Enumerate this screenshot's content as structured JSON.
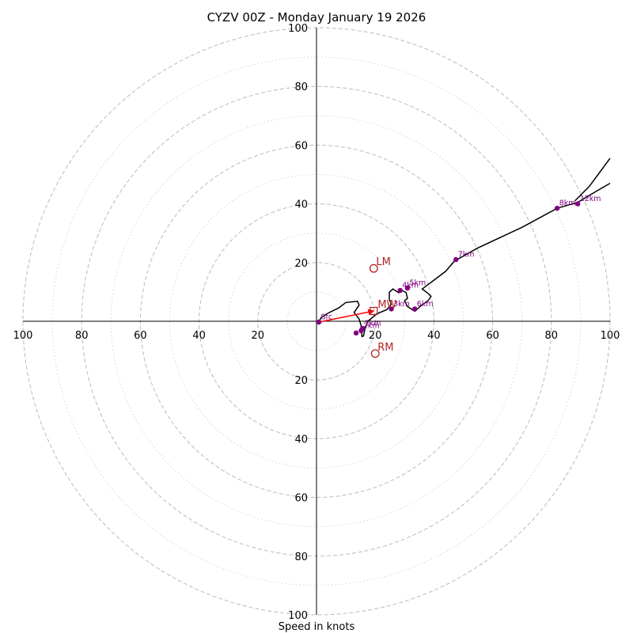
{
  "chart_data": {
    "type": "hodograph",
    "title": "CYZV 00Z - Monday January 19 2026",
    "xlabel": "Speed in knots",
    "range": [
      -100,
      100
    ],
    "ticks": {
      "x_labels": [
        "100",
        "80",
        "60",
        "40",
        "20",
        "20",
        "40",
        "60",
        "80",
        "100"
      ],
      "y_labels": [
        "100",
        "80",
        "60",
        "40",
        "20",
        "20",
        "40",
        "60",
        "80",
        "100"
      ]
    },
    "rings": {
      "major": [
        20,
        40,
        60,
        80,
        100
      ],
      "minor": [
        10,
        30,
        50,
        70,
        90
      ]
    },
    "trace": [
      {
        "u": 0.8,
        "v": -0.3
      },
      {
        "u": 1.5,
        "v": 1.2
      },
      {
        "u": 4.0,
        "v": 2.8
      },
      {
        "u": 7.5,
        "v": 4.5
      },
      {
        "u": 10.0,
        "v": 6.4
      },
      {
        "u": 14.0,
        "v": 6.8
      },
      {
        "u": 14.5,
        "v": 5.5
      },
      {
        "u": 12.8,
        "v": 3.0
      },
      {
        "u": 14.5,
        "v": 0.8
      },
      {
        "u": 15.2,
        "v": -1.5
      },
      {
        "u": 15.5,
        "v": -5.2
      },
      {
        "u": 16.0,
        "v": -5.0
      },
      {
        "u": 16.5,
        "v": -2.5
      },
      {
        "u": 17.5,
        "v": 0.0
      },
      {
        "u": 20.5,
        "v": 2.5
      },
      {
        "u": 24.0,
        "v": 4.0
      },
      {
        "u": 25.5,
        "v": 5.8
      },
      {
        "u": 24.8,
        "v": 7.5
      },
      {
        "u": 24.8,
        "v": 9.8
      },
      {
        "u": 26.0,
        "v": 11.0
      },
      {
        "u": 28.0,
        "v": 9.7
      },
      {
        "u": 29.0,
        "v": 10.5
      },
      {
        "u": 30.5,
        "v": 9.8
      },
      {
        "u": 31.0,
        "v": 7.8
      },
      {
        "u": 30.0,
        "v": 7.0
      },
      {
        "u": 31.0,
        "v": 5.0
      },
      {
        "u": 33.5,
        "v": 3.4
      },
      {
        "u": 35.5,
        "v": 5.2
      },
      {
        "u": 38.0,
        "v": 7.0
      },
      {
        "u": 39.0,
        "v": 8.4
      },
      {
        "u": 38.0,
        "v": 9.5
      },
      {
        "u": 36.0,
        "v": 11.0
      },
      {
        "u": 40.0,
        "v": 14.0
      },
      {
        "u": 44.0,
        "v": 17.0
      },
      {
        "u": 47.0,
        "v": 20.5
      },
      {
        "u": 55.0,
        "v": 25.0
      },
      {
        "u": 70.0,
        "v": 32.0
      },
      {
        "u": 82.0,
        "v": 38.5
      },
      {
        "u": 89.0,
        "v": 40.5
      },
      {
        "u": 94.0,
        "v": 43.5
      },
      {
        "u": 100.0,
        "v": 47.0
      }
    ],
    "trace_branch": [
      {
        "u": 88.0,
        "v": 41.0
      },
      {
        "u": 93.0,
        "v": 46.0
      },
      {
        "u": 100.0,
        "v": 55.5
      }
    ],
    "height_markers": [
      {
        "label": "Sfc",
        "u": 0.8,
        "v": -0.3
      },
      {
        "label": "1km",
        "u": 15.7,
        "v": -2.4
      },
      {
        "label": "2km",
        "u": 15.2,
        "v": -3.2
      },
      {
        "label": "3km",
        "u": 25.5,
        "v": 4.2
      },
      {
        "label": "4km",
        "u": 28.5,
        "v": 10.5
      },
      {
        "label": "5km",
        "u": 31.0,
        "v": 11.3
      },
      {
        "label": "6km",
        "u": 33.5,
        "v": 4.2
      },
      {
        "label": "7km",
        "u": 47.5,
        "v": 21.0
      },
      {
        "label": "8km",
        "u": 82.0,
        "v": 38.5
      },
      {
        "label": "12km",
        "u": 89.0,
        "v": 40.0
      }
    ],
    "extra_points": [
      {
        "u": 13.5,
        "v": -4.0
      }
    ],
    "motions": {
      "LM": {
        "u": 19.5,
        "v": 18.0
      },
      "RM": {
        "u": 20.0,
        "v": -11.0
      },
      "MW": {
        "u": 19.5,
        "v": 3.5
      }
    },
    "shear_vector": {
      "from": {
        "u": 0.8,
        "v": -0.3
      },
      "to": {
        "u": 19.5,
        "v": 3.5
      }
    },
    "colors": {
      "trace": "#000000",
      "markers": "#800080",
      "motions": "#b22222",
      "shear": "#ff0000",
      "grid": "#c0c0c0"
    }
  }
}
